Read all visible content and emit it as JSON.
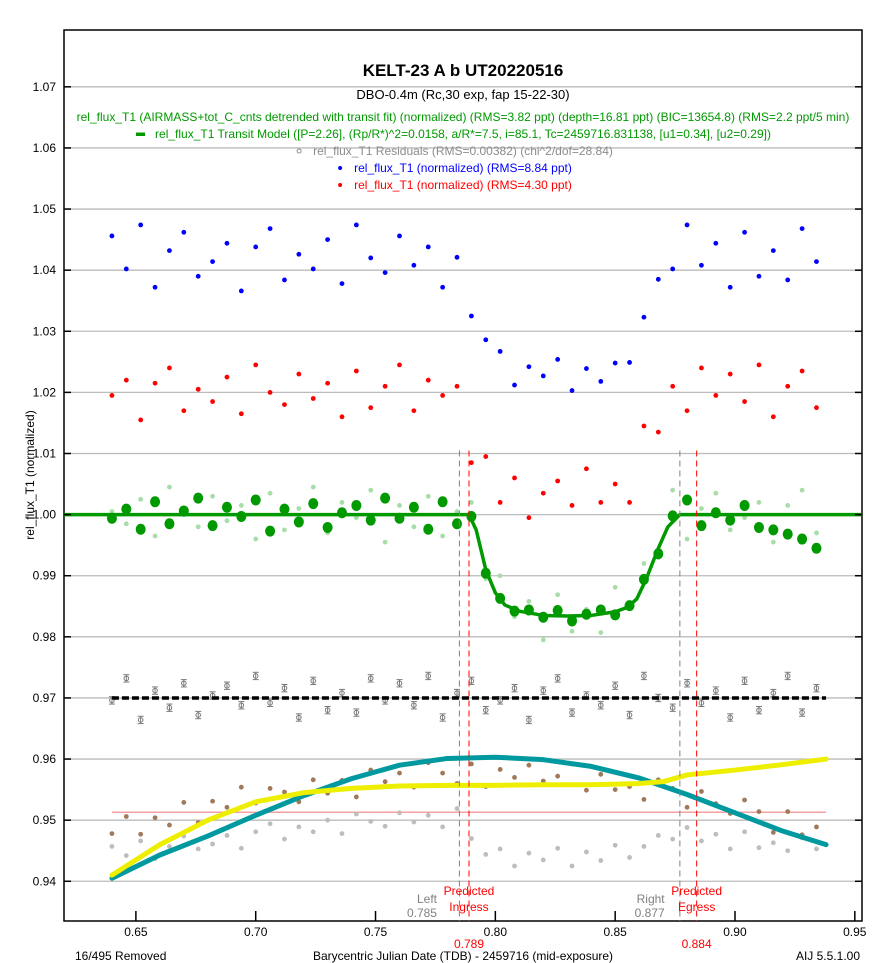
{
  "chart_data": {
    "type": "scatter",
    "title": "KELT-23 A b UT20220516",
    "subtitle": "DBO-0.4m (Rc,30 exp, fap 15-22-30)",
    "xlabel": "Barycentric Julian Date (TDB) - 2459716 (mid-exposure)",
    "ylabel": "rel_flux_T1 (normalized)",
    "xlim": [
      0.62,
      0.953
    ],
    "ylim": [
      0.9335,
      1.0793
    ],
    "x_ticks": [
      "0.65",
      "0.70",
      "0.75",
      "0.80",
      "0.85",
      "0.90",
      "0.95"
    ],
    "y_ticks": [
      "0.94",
      "0.95",
      "0.96",
      "0.97",
      "0.98",
      "0.99",
      "1.00",
      "1.01",
      "1.02",
      "1.03",
      "1.04",
      "1.05",
      "1.06",
      "1.07"
    ],
    "grid": "horizontal",
    "legend": [
      {
        "text": "rel_flux_T1 (AIRMASS+tot_C_cnts detrended with transit fit) (normalized) (RMS=3.82 ppt) (depth=16.81 ppt) (BIC=13654.8) (RMS=2.2 ppt/5 min)",
        "color": "#009900",
        "marker": "none"
      },
      {
        "text": "rel_flux_T1 Transit Model ([P=2.26], (Rp/R*)^2=0.0158, a/R*=7.5, i=85.1, Tc=2459716.831138, [u1=0.34], [u2=0.29])",
        "color": "#009900",
        "marker": "line"
      },
      {
        "text": "rel_flux_T1 Residuals (RMS=0.00382) (chi^2/dof=28.84)",
        "color": "#8c8c8c",
        "marker": "circle"
      },
      {
        "text": "rel_flux_T1 (normalized) (RMS=8.84 ppt)",
        "color": "#0000ff",
        "marker": "dot"
      },
      {
        "text": "rel_flux_T1 (normalized) (RMS=4.30 ppt)",
        "color": "#ff0000",
        "marker": "dot"
      }
    ],
    "x": [
      0.64,
      0.646,
      0.652,
      0.658,
      0.664,
      0.67,
      0.676,
      0.682,
      0.688,
      0.694,
      0.7,
      0.706,
      0.712,
      0.718,
      0.724,
      0.73,
      0.736,
      0.742,
      0.748,
      0.754,
      0.76,
      0.766,
      0.772,
      0.778,
      0.784,
      0.79,
      0.796,
      0.802,
      0.808,
      0.814,
      0.82,
      0.826,
      0.832,
      0.838,
      0.844,
      0.85,
      0.856,
      0.862,
      0.868,
      0.874,
      0.88,
      0.886,
      0.892,
      0.898,
      0.904,
      0.91,
      0.916,
      0.922,
      0.928,
      0.934
    ],
    "series": [
      {
        "key": "blue",
        "color": "#0000ff",
        "style": "dot",
        "values": [
          1.0456,
          1.0402,
          1.0474,
          1.0372,
          1.0432,
          1.0462,
          1.039,
          1.0414,
          1.0444,
          1.0366,
          1.0438,
          1.0468,
          1.0384,
          1.0426,
          1.0402,
          1.045,
          1.0378,
          1.0474,
          1.042,
          1.0396,
          1.0456,
          1.0408,
          1.0438,
          1.0372,
          1.0421,
          1.0325,
          1.0286,
          1.0267,
          1.0212,
          1.0242,
          1.0227,
          1.0254,
          1.0203,
          1.0239,
          1.0218,
          1.0248,
          1.0249,
          1.0323,
          1.0385,
          1.0402,
          1.0474,
          1.0408,
          1.0444,
          1.0372,
          1.0462,
          1.039,
          1.0432,
          1.0384,
          1.0468,
          1.0414
        ]
      },
      {
        "key": "red",
        "color": "#ff0000",
        "style": "dot",
        "values": [
          1.0195,
          1.022,
          1.0155,
          1.0215,
          1.024,
          1.017,
          1.0205,
          1.0185,
          1.0225,
          1.0165,
          1.0245,
          1.02,
          1.018,
          1.023,
          1.019,
          1.0215,
          1.016,
          1.0235,
          1.0175,
          1.021,
          1.0245,
          1.017,
          1.022,
          1.0195,
          1.021,
          1.0085,
          1.0095,
          1.002,
          1.006,
          0.9995,
          1.0035,
          1.0055,
          1.0015,
          1.0075,
          1.002,
          1.005,
          1.002,
          1.0145,
          1.0135,
          1.021,
          1.017,
          1.024,
          1.0195,
          1.023,
          1.0185,
          1.0245,
          1.016,
          1.021,
          1.0235,
          1.0175
        ]
      },
      {
        "key": "detrended",
        "color": "#a8dca8",
        "style": "dot",
        "values": [
          1.0005,
          0.9985,
          1.0025,
          0.9965,
          1.0045,
          1.0,
          0.998,
          1.003,
          0.999,
          1.0015,
          0.996,
          1.0035,
          0.9975,
          1.001,
          1.0045,
          0.997,
          1.002,
          0.9995,
          1.004,
          0.9955,
          1.0015,
          0.998,
          1.003,
          0.9965,
          1.0005,
          1.002,
          0.9895,
          0.99,
          0.9833,
          0.9858,
          0.9795,
          0.9869,
          0.9809,
          0.9845,
          0.9807,
          0.9881,
          0.9847,
          0.992,
          0.993,
          1.004,
          0.996,
          1.001,
          1.0035,
          0.9975,
          0.9995,
          1.002,
          0.9955,
          1.0015,
          1.004,
          0.997
        ]
      },
      {
        "key": "detrended-binned",
        "color": "#009900",
        "style": "bigdot",
        "values": [
          0.9994,
          1.0009,
          0.9976,
          1.0021,
          0.9985,
          1.0006,
          1.0027,
          0.9982,
          1.0012,
          0.9997,
          1.0024,
          0.9973,
          1.0009,
          0.9988,
          1.0018,
          0.9979,
          1.0003,
          1.0015,
          0.9991,
          1.0027,
          0.9994,
          1.0012,
          0.9976,
          1.0021,
          0.9985,
          0.9997,
          0.9904,
          0.9863,
          0.9842,
          0.9844,
          0.9832,
          0.9843,
          0.9826,
          0.9837,
          0.9844,
          0.9836,
          0.9851,
          0.9894,
          0.9936,
          0.9998,
          1.0024,
          0.9982,
          1.0003,
          0.9991,
          1.0015,
          0.9979,
          0.9975,
          0.9968,
          0.996,
          0.9945
        ]
      },
      {
        "key": "residuals",
        "color": "#7a7a7a",
        "style": "errcircle",
        "error": 0.0006,
        "values": [
          0.9696,
          0.9732,
          0.9664,
          0.9712,
          0.9684,
          0.9724,
          0.9672,
          0.9704,
          0.972,
          0.9688,
          0.9736,
          0.9692,
          0.9716,
          0.9668,
          0.9728,
          0.968,
          0.9708,
          0.9676,
          0.9732,
          0.9696,
          0.9724,
          0.9688,
          0.9736,
          0.9668,
          0.9708,
          0.9728,
          0.968,
          0.9696,
          0.9716,
          0.9664,
          0.9712,
          0.9732,
          0.9676,
          0.9704,
          0.9688,
          0.972,
          0.9672,
          0.9736,
          0.97,
          0.9684,
          0.9724,
          0.9692,
          0.9712,
          0.9668,
          0.9728,
          0.968,
          0.9708,
          0.9736,
          0.9676,
          0.9716
        ]
      },
      {
        "key": "tot_C_cnts",
        "color": "#a0785a",
        "style": "dot",
        "values": [
          0.9478,
          0.9506,
          0.9477,
          0.9504,
          0.9492,
          0.9529,
          0.9496,
          0.9531,
          0.9521,
          0.9554,
          0.9528,
          0.9552,
          0.9546,
          0.953,
          0.9566,
          0.9544,
          0.9565,
          0.9538,
          0.9582,
          0.9563,
          0.9577,
          0.9554,
          0.9594,
          0.9577,
          0.956,
          0.9592,
          0.9555,
          0.9583,
          0.957,
          0.959,
          0.9564,
          0.9572,
          0.9592,
          0.9549,
          0.9575,
          0.955,
          0.9555,
          0.9534,
          0.9566,
          0.9552,
          0.9521,
          0.9547,
          0.9527,
          0.9511,
          0.9533,
          0.9514,
          0.948,
          0.9514,
          0.9476,
          0.9489
        ]
      },
      {
        "key": "grey",
        "color": "#bdbdbd",
        "style": "dot",
        "values": [
          0.9457,
          0.9442,
          0.9466,
          0.9437,
          0.9457,
          0.9474,
          0.9453,
          0.9461,
          0.9475,
          0.9454,
          0.9481,
          0.9494,
          0.9469,
          0.9489,
          0.9481,
          0.95,
          0.9478,
          0.951,
          0.9498,
          0.949,
          0.9512,
          0.9497,
          0.9508,
          0.9489,
          0.9519,
          0.947,
          0.9444,
          0.9453,
          0.9425,
          0.9446,
          0.9435,
          0.9454,
          0.9425,
          0.9448,
          0.9434,
          0.9459,
          0.9439,
          0.9457,
          0.9475,
          0.9469,
          0.9488,
          0.9466,
          0.9477,
          0.9453,
          0.9481,
          0.9455,
          0.9463,
          0.945,
          0.9471,
          0.9453
        ]
      }
    ],
    "curves": [
      {
        "key": "teal",
        "color": "#00999f",
        "x": [
          0.64,
          0.66,
          0.68,
          0.7,
          0.72,
          0.74,
          0.76,
          0.78,
          0.8,
          0.82,
          0.84,
          0.86,
          0.88,
          0.9,
          0.92,
          0.938
        ],
        "y": [
          0.9405,
          0.9443,
          0.9474,
          0.9508,
          0.954,
          0.9568,
          0.959,
          0.9601,
          0.9603,
          0.9599,
          0.9588,
          0.9569,
          0.9542,
          0.9512,
          0.9482,
          0.946
        ]
      },
      {
        "key": "airmass",
        "color": "#eeee00",
        "x": [
          0.64,
          0.66,
          0.68,
          0.7,
          0.72,
          0.74,
          0.76,
          0.78,
          0.8,
          0.82,
          0.84,
          0.86,
          0.87,
          0.88,
          0.9,
          0.92,
          0.938
        ],
        "y": [
          0.941,
          0.946,
          0.95,
          0.953,
          0.9545,
          0.9552,
          0.9556,
          0.9557,
          0.9557,
          0.9558,
          0.9558,
          0.956,
          0.9563,
          0.9574,
          0.9582,
          0.9591,
          0.96
        ]
      }
    ],
    "model": {
      "color": "#009900",
      "x": [
        0.62,
        0.789,
        0.792,
        0.796,
        0.8,
        0.804,
        0.81,
        0.82,
        0.83,
        0.84,
        0.85,
        0.855,
        0.859,
        0.863,
        0.868,
        0.872,
        0.877,
        0.953
      ],
      "y": [
        1.0,
        1.0,
        0.9975,
        0.991,
        0.9872,
        0.9852,
        0.9842,
        0.9835,
        0.9834,
        0.9835,
        0.9841,
        0.9848,
        0.9862,
        0.9895,
        0.9945,
        0.998,
        1.0,
        1.0
      ]
    },
    "residual_baseline": {
      "y": 0.97,
      "x": [
        0.64,
        0.938
      ],
      "color": "#000000"
    },
    "reference_line": {
      "y": 0.9513,
      "x": [
        0.64,
        0.938
      ],
      "color": "#f4a0a0"
    },
    "markers": [
      {
        "x": 0.785,
        "color": "#808080",
        "label_lines": [
          "Left"
        ],
        "value": "0.785"
      },
      {
        "x": 0.789,
        "color": "#ff0000",
        "label_lines": [
          "Predicted",
          "Ingress"
        ],
        "value": "0.789"
      },
      {
        "x": 0.877,
        "color": "#808080",
        "label_lines": [
          "Right"
        ],
        "value": "0.877"
      },
      {
        "x": 0.884,
        "color": "#ff0000",
        "label_lines": [
          "Predicted",
          "Egress"
        ],
        "value": "0.884"
      }
    ]
  },
  "footer": {
    "removed": "16/495 Removed",
    "version": "AIJ 5.5.1.00"
  }
}
